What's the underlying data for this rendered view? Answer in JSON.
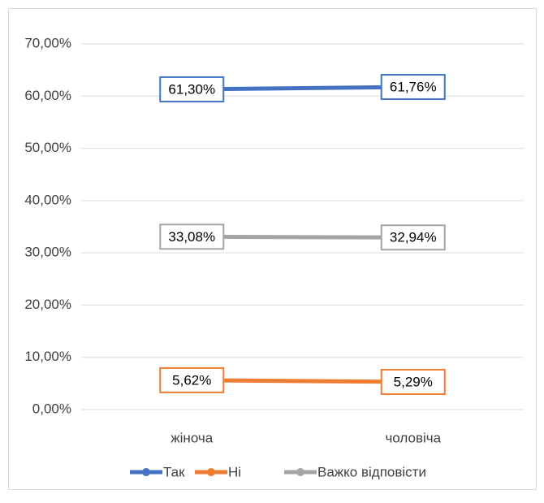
{
  "chart_data": {
    "type": "line",
    "categories": [
      "жіноча",
      "чоловіча"
    ],
    "series": [
      {
        "name": "Так",
        "color": "#4472c4",
        "values": [
          61.3,
          61.76
        ],
        "value_labels": [
          "61,30%",
          "61,76%"
        ]
      },
      {
        "name": "Ні",
        "color": "#ed7d31",
        "values": [
          5.62,
          5.29
        ],
        "value_labels": [
          "5,62%",
          "5,29%"
        ]
      },
      {
        "name": "Важко відповісти",
        "color": "#a5a5a5",
        "values": [
          33.08,
          32.94
        ],
        "value_labels": [
          "33,08%",
          "32,94%"
        ]
      }
    ],
    "ylim": [
      0,
      70
    ],
    "yticks": [
      {
        "value": 0,
        "label": "0,00%"
      },
      {
        "value": 10,
        "label": "10,00%"
      },
      {
        "value": 20,
        "label": "20,00%"
      },
      {
        "value": 30,
        "label": "30,00%"
      },
      {
        "value": 40,
        "label": "40,00%"
      },
      {
        "value": 50,
        "label": "50,00%"
      },
      {
        "value": 60,
        "label": "60,00%"
      },
      {
        "value": 70,
        "label": "70,00%"
      }
    ],
    "grid": true,
    "legend": "bottom"
  }
}
